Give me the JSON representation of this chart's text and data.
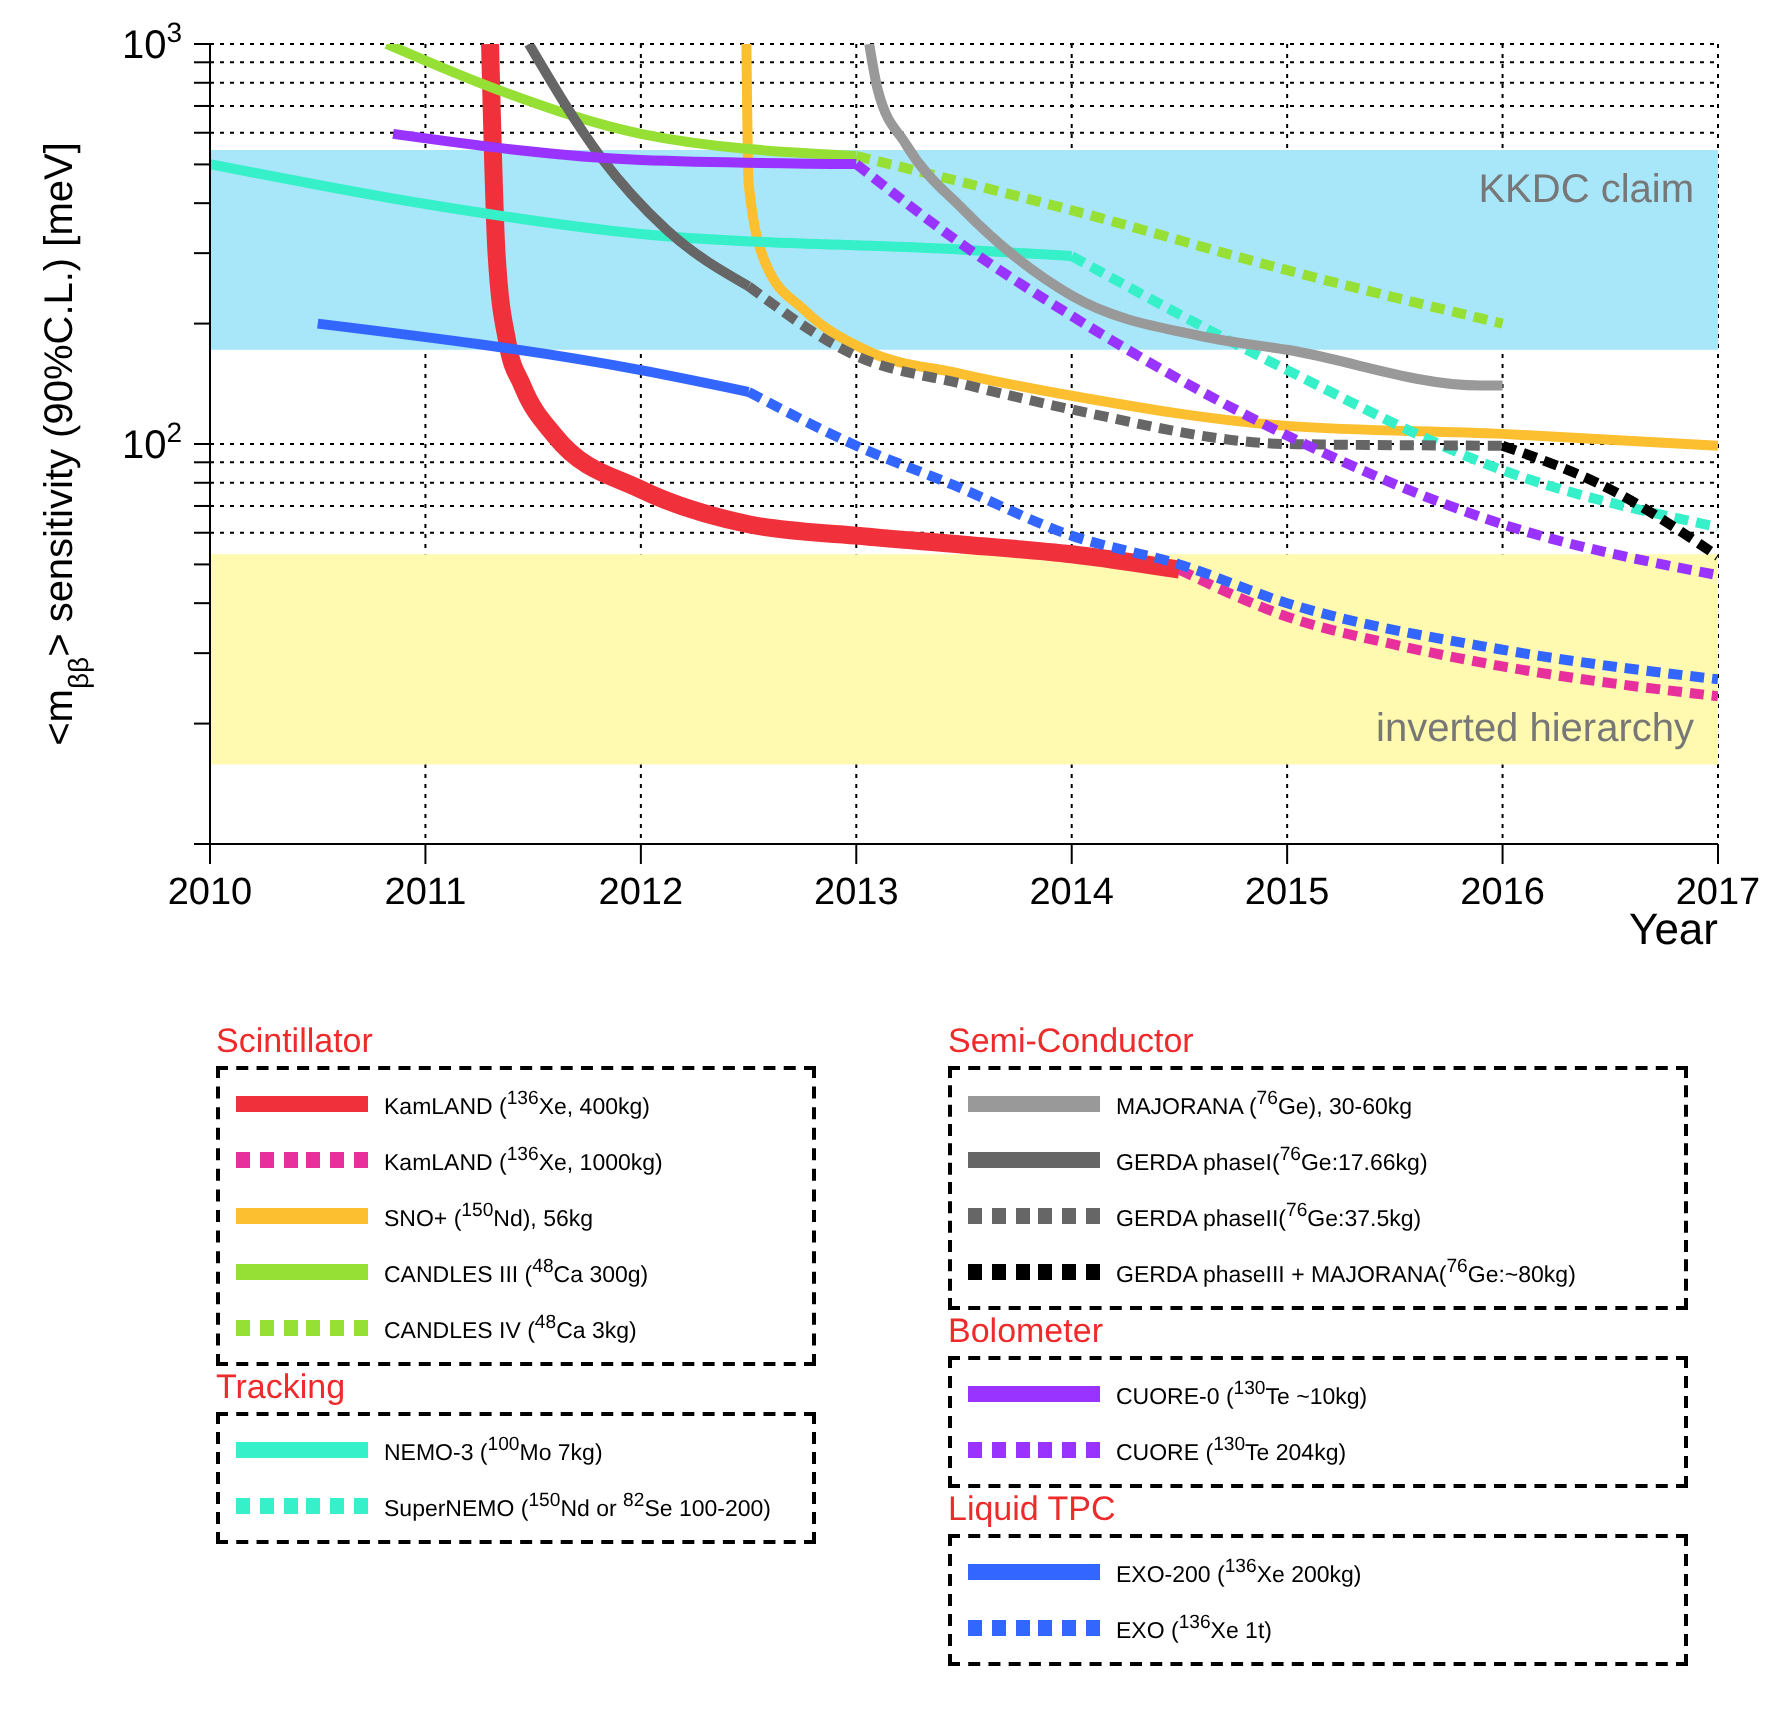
{
  "chart_data": {
    "type": "line",
    "xlabel": "Year",
    "ylabel": "<m$_{ββ}$> sensitivity (90%C.L.) [meV]",
    "xlim": [
      2010,
      2017
    ],
    "xticks": [
      2010,
      2011,
      2012,
      2013,
      2014,
      2015,
      2016,
      2017
    ],
    "ylim": [
      10,
      1000
    ],
    "log": "y",
    "yticks": [
      {
        "value": 10,
        "label": null
      },
      {
        "value": 20,
        "label": null
      },
      {
        "value": 30,
        "label": null
      },
      {
        "value": 40,
        "label": null
      },
      {
        "value": 50,
        "label": null
      },
      {
        "value": 60,
        "label": null
      },
      {
        "value": 70,
        "label": null
      },
      {
        "value": 80,
        "label": null
      },
      {
        "value": 90,
        "label": null
      },
      {
        "value": 100,
        "label": "10$^{2}$"
      },
      {
        "value": 200,
        "label": null
      },
      {
        "value": 300,
        "label": null
      },
      {
        "value": 400,
        "label": null
      },
      {
        "value": 500,
        "label": null
      },
      {
        "value": 600,
        "label": null
      },
      {
        "value": 700,
        "label": null
      },
      {
        "value": 800,
        "label": null
      },
      {
        "value": 900,
        "label": null
      },
      {
        "value": 1000,
        "label": "10$^{3}$"
      }
    ],
    "grid": true,
    "legend": "bottom",
    "bands": [
      {
        "axis": "y",
        "from": 172,
        "to": 543,
        "label": "KKDC claim",
        "color": "#a8e6fa"
      },
      {
        "axis": "y",
        "from": 15.8,
        "to": 53,
        "label": "inverted hierarchy",
        "color": "#fffab0"
      }
    ],
    "annotations": [
      "Scintillator",
      "Tracking",
      "Semi-Conductor",
      "Bolometer",
      "Liquid TPC"
    ],
    "series": [
      {
        "name": "KamLAND ($^{136}$Xe, 400kg)",
        "color": "#f0303a",
        "line_style": "solid",
        "x": [
          2011.3,
          2011.33,
          2011.38,
          2011.45,
          2011.6,
          2012,
          2012.5,
          2013,
          2013.5,
          2014,
          2014.5
        ],
        "values": [
          1000,
          300,
          180,
          140,
          105,
          77,
          63,
          59,
          56,
          53,
          48.5
        ]
      },
      {
        "name": "KamLAND ($^{136}$Xe, 1000kg)",
        "color": "#e8309c",
        "line_style": "dashed",
        "x": [
          2014.5,
          2015,
          2015.5,
          2016,
          2017
        ],
        "values": [
          48.5,
          37,
          31.5,
          27.8,
          23.4
        ]
      },
      {
        "name": "SNO+ ($^{150}$Nd), 56kg",
        "color": "#fbbf2f",
        "line_style": "solid",
        "x": [
          2012.49,
          2012.5,
          2012.58,
          2012.76,
          2013.04,
          2013.48,
          2014,
          2015,
          2016,
          2017
        ],
        "values": [
          1000,
          450,
          282,
          216,
          172,
          150,
          132,
          111,
          106,
          99
        ]
      },
      {
        "name": "CANDLES III ($^{48}$Ca 300g)",
        "color": "#96e035",
        "line_style": "solid",
        "x": [
          2010.82,
          2011.34,
          2012,
          2013
        ],
        "values": [
          1000,
          767,
          596,
          525
        ]
      },
      {
        "name": "CANDLES IV ($^{48}$Ca 3kg)",
        "color": "#96e035",
        "line_style": "dashed",
        "x": [
          2013,
          2014,
          2015,
          2016
        ],
        "values": [
          525,
          384,
          272,
          200
        ]
      },
      {
        "name": "NEMO-3 ($^{100}$Mo 7kg)",
        "color": "#35f0c8",
        "line_style": "solid",
        "x": [
          2010,
          2011,
          2012,
          2013.5,
          2014
        ],
        "values": [
          501,
          398,
          335,
          306,
          295
        ]
      },
      {
        "name": "SuperNEMO ($^{150}$Nd or $^{82}$Se 100-200)",
        "color": "#35f0c8",
        "line_style": "dashed",
        "x": [
          2014,
          2015,
          2016,
          2017
        ],
        "values": [
          295,
          153,
          86,
          62
        ]
      },
      {
        "name": "MAJORANA ($^{76}$Ge), 30-60kg",
        "color": "#999999",
        "line_style": "solid",
        "x": [
          2013.06,
          2013.1,
          2013.23,
          2013.5,
          2014,
          2014.6,
          2015,
          2015.9,
          2016
        ],
        "values": [
          1000,
          767,
          562,
          384,
          235,
          186,
          172,
          140,
          140
        ]
      },
      {
        "name": "GERDA phaseI($^{76}$Ge:17.66kg)",
        "color": "#666666",
        "line_style": "solid",
        "x": [
          2011.48,
          2011.81,
          2012.12,
          2012.5
        ],
        "values": [
          1000,
          525,
          343,
          248
        ]
      },
      {
        "name": "GERDA phaseII($^{76}$Ge:37.5kg)",
        "color": "#666666",
        "line_style": "dashed",
        "x": [
          2012.5,
          2013,
          2013.5,
          2014,
          2015,
          2016
        ],
        "values": [
          248,
          166,
          141,
          122,
          100,
          99
        ]
      },
      {
        "name": "GERDA phaseIII + MAJORANA($^{76}$Ge:~80kg)",
        "color": "#000000",
        "line_style": "dashed",
        "x": [
          2016,
          2016.5,
          2017
        ],
        "values": [
          99,
          77,
          52.4
        ]
      },
      {
        "name": "CUORE-0 ($^{130}$Te ~10kg)",
        "color": "#9933ff",
        "line_style": "solid",
        "x": [
          2010.85,
          2012,
          2013
        ],
        "values": [
          596,
          513,
          501
        ]
      },
      {
        "name": "CUORE ($^{130}$Te 204kg)",
        "color": "#9933ff",
        "line_style": "dashed",
        "x": [
          2013,
          2013.5,
          2014,
          2015,
          2016,
          2017
        ],
        "values": [
          501,
          313,
          209,
          105,
          63,
          47
        ]
      },
      {
        "name": "EXO-200 ($^{136}$Xe 200kg)",
        "color": "#3366ff",
        "line_style": "solid",
        "x": [
          2010.5,
          2012,
          2012.5
        ],
        "values": [
          200,
          153,
          135
        ]
      },
      {
        "name": "EXO ($^{136}$Xe 1t)",
        "color": "#3366ff",
        "line_style": "dashed",
        "x": [
          2012.5,
          2013,
          2013.45,
          2014,
          2014.5,
          2015,
          2016,
          2017
        ],
        "values": [
          135,
          99,
          79,
          59,
          50,
          40,
          30.6,
          25.8
        ]
      }
    ]
  }
}
